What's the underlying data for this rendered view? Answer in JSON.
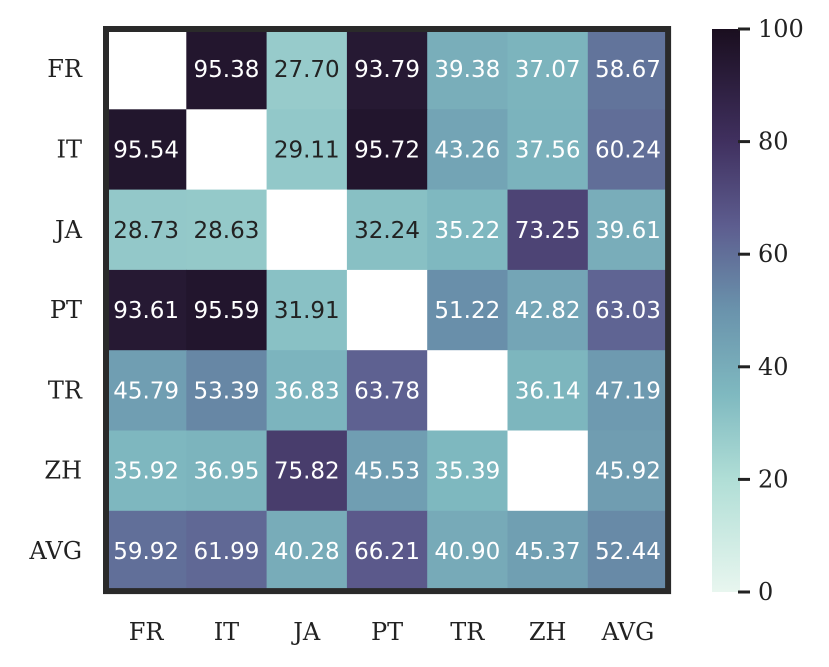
{
  "chart_data": {
    "type": "heatmap",
    "title": "",
    "xlabel": "",
    "ylabel": "",
    "rows": [
      "FR",
      "IT",
      "JA",
      "PT",
      "TR",
      "ZH",
      "AVG"
    ],
    "columns": [
      "FR",
      "IT",
      "JA",
      "PT",
      "TR",
      "ZH",
      "AVG"
    ],
    "values": [
      [
        null,
        95.38,
        27.7,
        93.79,
        39.38,
        37.07,
        58.67
      ],
      [
        95.54,
        null,
        29.11,
        95.72,
        43.26,
        37.56,
        60.24
      ],
      [
        28.73,
        28.63,
        null,
        32.24,
        35.22,
        73.25,
        39.61
      ],
      [
        93.61,
        95.59,
        31.91,
        null,
        51.22,
        42.82,
        63.03
      ],
      [
        45.79,
        53.39,
        36.83,
        63.78,
        null,
        36.14,
        47.19
      ],
      [
        35.92,
        36.95,
        75.82,
        45.53,
        35.39,
        null,
        45.92
      ],
      [
        59.92,
        61.99,
        40.28,
        66.21,
        40.9,
        45.37,
        52.44
      ]
    ],
    "value_labels": [
      [
        "",
        "95.38",
        "27.70",
        "93.79",
        "39.38",
        "37.07",
        "58.67"
      ],
      [
        "95.54",
        "",
        "29.11",
        "95.72",
        "43.26",
        "37.56",
        "60.24"
      ],
      [
        "28.73",
        "28.63",
        "",
        "32.24",
        "35.22",
        "73.25",
        "39.61"
      ],
      [
        "93.61",
        "95.59",
        "31.91",
        "",
        "51.22",
        "42.82",
        "63.03"
      ],
      [
        "45.79",
        "53.39",
        "36.83",
        "63.78",
        "",
        "36.14",
        "47.19"
      ],
      [
        "35.92",
        "36.95",
        "75.82",
        "45.53",
        "35.39",
        "",
        "45.92"
      ],
      [
        "59.92",
        "61.99",
        "40.28",
        "66.21",
        "40.90",
        "45.37",
        "52.44"
      ]
    ],
    "colorbar": {
      "range": [
        0,
        100
      ],
      "ticks": [
        0,
        20,
        40,
        60,
        80,
        100
      ],
      "tick_labels": [
        "0",
        "20",
        "40",
        "60",
        "80",
        "100"
      ],
      "colormap": [
        {
          "value": 0,
          "color": "#e8f6ef"
        },
        {
          "value": 20,
          "color": "#b0ded6"
        },
        {
          "value": 35,
          "color": "#7fb9c0"
        },
        {
          "value": 50,
          "color": "#6a93ac"
        },
        {
          "value": 65,
          "color": "#5d5d8f"
        },
        {
          "value": 80,
          "color": "#40305f"
        },
        {
          "value": 100,
          "color": "#1a0e1f"
        }
      ]
    },
    "missing_cell_color": "#ffffff",
    "frame_color": "#2a2a2a",
    "label_color_dark": "#222222",
    "label_color_light": "#ffffff",
    "grid": false
  }
}
